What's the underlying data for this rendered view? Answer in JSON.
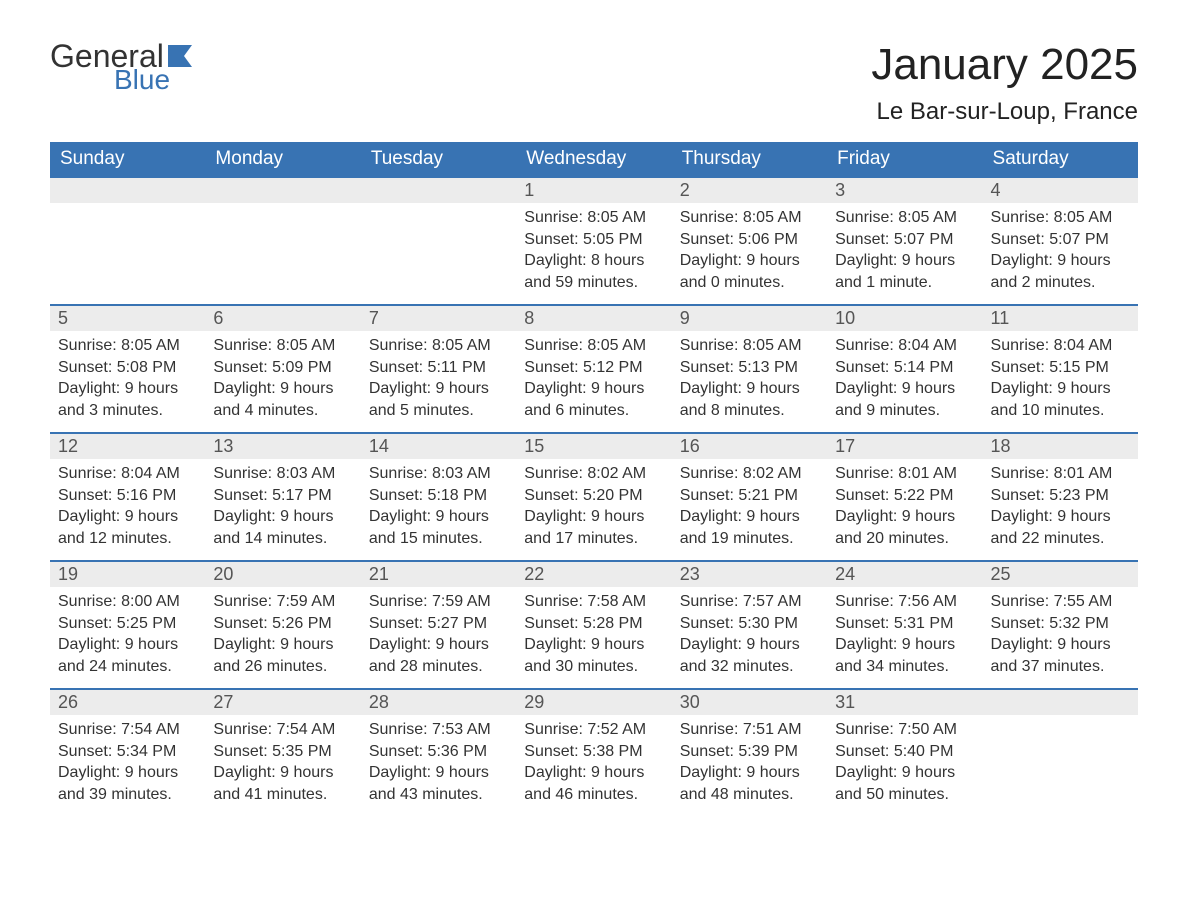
{
  "logo": {
    "text_general": "General",
    "text_blue": "Blue",
    "flag_color": "#3873b3"
  },
  "title": "January 2025",
  "location": "Le Bar-sur-Loup, France",
  "colors": {
    "header_bg": "#3873b3",
    "header_text": "#ffffff",
    "daynum_bg": "#ececec",
    "daynum_text": "#555555",
    "body_text": "#333333",
    "row_divider": "#3873b3",
    "page_bg": "#ffffff"
  },
  "day_headers": [
    "Sunday",
    "Monday",
    "Tuesday",
    "Wednesday",
    "Thursday",
    "Friday",
    "Saturday"
  ],
  "weeks": [
    [
      {
        "empty": true
      },
      {
        "empty": true
      },
      {
        "empty": true
      },
      {
        "n": "1",
        "sunrise": "Sunrise: 8:05 AM",
        "sunset": "Sunset: 5:05 PM",
        "dl1": "Daylight: 8 hours",
        "dl2": "and 59 minutes."
      },
      {
        "n": "2",
        "sunrise": "Sunrise: 8:05 AM",
        "sunset": "Sunset: 5:06 PM",
        "dl1": "Daylight: 9 hours",
        "dl2": "and 0 minutes."
      },
      {
        "n": "3",
        "sunrise": "Sunrise: 8:05 AM",
        "sunset": "Sunset: 5:07 PM",
        "dl1": "Daylight: 9 hours",
        "dl2": "and 1 minute."
      },
      {
        "n": "4",
        "sunrise": "Sunrise: 8:05 AM",
        "sunset": "Sunset: 5:07 PM",
        "dl1": "Daylight: 9 hours",
        "dl2": "and 2 minutes."
      }
    ],
    [
      {
        "n": "5",
        "sunrise": "Sunrise: 8:05 AM",
        "sunset": "Sunset: 5:08 PM",
        "dl1": "Daylight: 9 hours",
        "dl2": "and 3 minutes."
      },
      {
        "n": "6",
        "sunrise": "Sunrise: 8:05 AM",
        "sunset": "Sunset: 5:09 PM",
        "dl1": "Daylight: 9 hours",
        "dl2": "and 4 minutes."
      },
      {
        "n": "7",
        "sunrise": "Sunrise: 8:05 AM",
        "sunset": "Sunset: 5:11 PM",
        "dl1": "Daylight: 9 hours",
        "dl2": "and 5 minutes."
      },
      {
        "n": "8",
        "sunrise": "Sunrise: 8:05 AM",
        "sunset": "Sunset: 5:12 PM",
        "dl1": "Daylight: 9 hours",
        "dl2": "and 6 minutes."
      },
      {
        "n": "9",
        "sunrise": "Sunrise: 8:05 AM",
        "sunset": "Sunset: 5:13 PM",
        "dl1": "Daylight: 9 hours",
        "dl2": "and 8 minutes."
      },
      {
        "n": "10",
        "sunrise": "Sunrise: 8:04 AM",
        "sunset": "Sunset: 5:14 PM",
        "dl1": "Daylight: 9 hours",
        "dl2": "and 9 minutes."
      },
      {
        "n": "11",
        "sunrise": "Sunrise: 8:04 AM",
        "sunset": "Sunset: 5:15 PM",
        "dl1": "Daylight: 9 hours",
        "dl2": "and 10 minutes."
      }
    ],
    [
      {
        "n": "12",
        "sunrise": "Sunrise: 8:04 AM",
        "sunset": "Sunset: 5:16 PM",
        "dl1": "Daylight: 9 hours",
        "dl2": "and 12 minutes."
      },
      {
        "n": "13",
        "sunrise": "Sunrise: 8:03 AM",
        "sunset": "Sunset: 5:17 PM",
        "dl1": "Daylight: 9 hours",
        "dl2": "and 14 minutes."
      },
      {
        "n": "14",
        "sunrise": "Sunrise: 8:03 AM",
        "sunset": "Sunset: 5:18 PM",
        "dl1": "Daylight: 9 hours",
        "dl2": "and 15 minutes."
      },
      {
        "n": "15",
        "sunrise": "Sunrise: 8:02 AM",
        "sunset": "Sunset: 5:20 PM",
        "dl1": "Daylight: 9 hours",
        "dl2": "and 17 minutes."
      },
      {
        "n": "16",
        "sunrise": "Sunrise: 8:02 AM",
        "sunset": "Sunset: 5:21 PM",
        "dl1": "Daylight: 9 hours",
        "dl2": "and 19 minutes."
      },
      {
        "n": "17",
        "sunrise": "Sunrise: 8:01 AM",
        "sunset": "Sunset: 5:22 PM",
        "dl1": "Daylight: 9 hours",
        "dl2": "and 20 minutes."
      },
      {
        "n": "18",
        "sunrise": "Sunrise: 8:01 AM",
        "sunset": "Sunset: 5:23 PM",
        "dl1": "Daylight: 9 hours",
        "dl2": "and 22 minutes."
      }
    ],
    [
      {
        "n": "19",
        "sunrise": "Sunrise: 8:00 AM",
        "sunset": "Sunset: 5:25 PM",
        "dl1": "Daylight: 9 hours",
        "dl2": "and 24 minutes."
      },
      {
        "n": "20",
        "sunrise": "Sunrise: 7:59 AM",
        "sunset": "Sunset: 5:26 PM",
        "dl1": "Daylight: 9 hours",
        "dl2": "and 26 minutes."
      },
      {
        "n": "21",
        "sunrise": "Sunrise: 7:59 AM",
        "sunset": "Sunset: 5:27 PM",
        "dl1": "Daylight: 9 hours",
        "dl2": "and 28 minutes."
      },
      {
        "n": "22",
        "sunrise": "Sunrise: 7:58 AM",
        "sunset": "Sunset: 5:28 PM",
        "dl1": "Daylight: 9 hours",
        "dl2": "and 30 minutes."
      },
      {
        "n": "23",
        "sunrise": "Sunrise: 7:57 AM",
        "sunset": "Sunset: 5:30 PM",
        "dl1": "Daylight: 9 hours",
        "dl2": "and 32 minutes."
      },
      {
        "n": "24",
        "sunrise": "Sunrise: 7:56 AM",
        "sunset": "Sunset: 5:31 PM",
        "dl1": "Daylight: 9 hours",
        "dl2": "and 34 minutes."
      },
      {
        "n": "25",
        "sunrise": "Sunrise: 7:55 AM",
        "sunset": "Sunset: 5:32 PM",
        "dl1": "Daylight: 9 hours",
        "dl2": "and 37 minutes."
      }
    ],
    [
      {
        "n": "26",
        "sunrise": "Sunrise: 7:54 AM",
        "sunset": "Sunset: 5:34 PM",
        "dl1": "Daylight: 9 hours",
        "dl2": "and 39 minutes."
      },
      {
        "n": "27",
        "sunrise": "Sunrise: 7:54 AM",
        "sunset": "Sunset: 5:35 PM",
        "dl1": "Daylight: 9 hours",
        "dl2": "and 41 minutes."
      },
      {
        "n": "28",
        "sunrise": "Sunrise: 7:53 AM",
        "sunset": "Sunset: 5:36 PM",
        "dl1": "Daylight: 9 hours",
        "dl2": "and 43 minutes."
      },
      {
        "n": "29",
        "sunrise": "Sunrise: 7:52 AM",
        "sunset": "Sunset: 5:38 PM",
        "dl1": "Daylight: 9 hours",
        "dl2": "and 46 minutes."
      },
      {
        "n": "30",
        "sunrise": "Sunrise: 7:51 AM",
        "sunset": "Sunset: 5:39 PM",
        "dl1": "Daylight: 9 hours",
        "dl2": "and 48 minutes."
      },
      {
        "n": "31",
        "sunrise": "Sunrise: 7:50 AM",
        "sunset": "Sunset: 5:40 PM",
        "dl1": "Daylight: 9 hours",
        "dl2": "and 50 minutes."
      },
      {
        "empty": true
      }
    ]
  ]
}
